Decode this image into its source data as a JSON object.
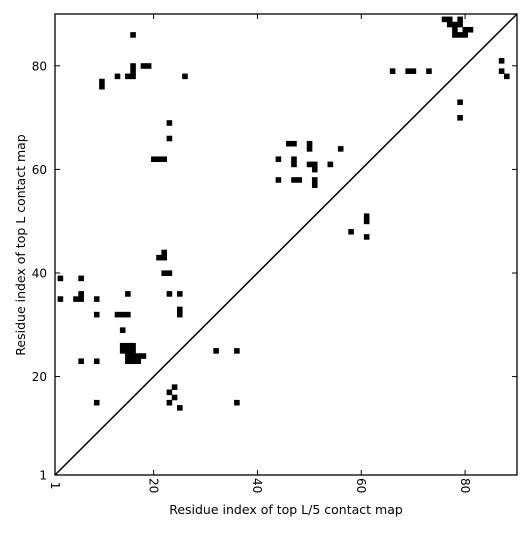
{
  "chart_data": {
    "type": "heatmap",
    "xlabel": "Residue index of top L/5 contact map",
    "ylabel": "Residue index of top L contact map",
    "x_ticks": [
      1,
      20,
      40,
      60,
      80
    ],
    "y_ticks": [
      1,
      20,
      40,
      60,
      80
    ],
    "x_tick_labels": [
      "1",
      "20",
      "40",
      "60",
      "80"
    ],
    "y_tick_labels": [
      "1",
      "20",
      "40",
      "60",
      "80"
    ],
    "xlim": [
      1,
      90
    ],
    "ylim": [
      1,
      90
    ],
    "diagonal": true,
    "grid": false,
    "colors": {
      "contact": "#000000",
      "background": "#ffffff",
      "axis": "#000000"
    },
    "contacts": [
      [
        16,
        86
      ],
      [
        10,
        77
      ],
      [
        10,
        76
      ],
      [
        13,
        78
      ],
      [
        15,
        78
      ],
      [
        16,
        78
      ],
      [
        16,
        79
      ],
      [
        16,
        80
      ],
      [
        18,
        80
      ],
      [
        19,
        80
      ],
      [
        26,
        78
      ],
      [
        23,
        69
      ],
      [
        23,
        66
      ],
      [
        20,
        62
      ],
      [
        21,
        62
      ],
      [
        22,
        62
      ],
      [
        21,
        43
      ],
      [
        22,
        43
      ],
      [
        22,
        44
      ],
      [
        22,
        40
      ],
      [
        23,
        40
      ],
      [
        23,
        36
      ],
      [
        25,
        36
      ],
      [
        25,
        33
      ],
      [
        25,
        32
      ],
      [
        2,
        39
      ],
      [
        6,
        39
      ],
      [
        2,
        35
      ],
      [
        5,
        35
      ],
      [
        6,
        35
      ],
      [
        6,
        36
      ],
      [
        9,
        35
      ],
      [
        9,
        32
      ],
      [
        13,
        32
      ],
      [
        14,
        32
      ],
      [
        15,
        32
      ],
      [
        15,
        36
      ],
      [
        14,
        29
      ],
      [
        14,
        26
      ],
      [
        15,
        26
      ],
      [
        16,
        26
      ],
      [
        14,
        25
      ],
      [
        15,
        25
      ],
      [
        16,
        25
      ],
      [
        15,
        24
      ],
      [
        16,
        24
      ],
      [
        17,
        24
      ],
      [
        18,
        24
      ],
      [
        15,
        23
      ],
      [
        16,
        23
      ],
      [
        17,
        23
      ],
      [
        6,
        23
      ],
      [
        9,
        23
      ],
      [
        9,
        15
      ],
      [
        24,
        18
      ],
      [
        23,
        17
      ],
      [
        24,
        16
      ],
      [
        23,
        15
      ],
      [
        25,
        14
      ],
      [
        32,
        25
      ],
      [
        36,
        25
      ],
      [
        36,
        15
      ],
      [
        44,
        62
      ],
      [
        44,
        58
      ],
      [
        46,
        65
      ],
      [
        47,
        65
      ],
      [
        47,
        62
      ],
      [
        47,
        61
      ],
      [
        47,
        58
      ],
      [
        48,
        58
      ],
      [
        50,
        65
      ],
      [
        50,
        64
      ],
      [
        50,
        61
      ],
      [
        51,
        61
      ],
      [
        51,
        60
      ],
      [
        51,
        58
      ],
      [
        51,
        57
      ],
      [
        54,
        61
      ],
      [
        56,
        64
      ],
      [
        58,
        48
      ],
      [
        61,
        51
      ],
      [
        61,
        50
      ],
      [
        61,
        47
      ],
      [
        66,
        79
      ],
      [
        69,
        79
      ],
      [
        70,
        79
      ],
      [
        73,
        79
      ],
      [
        76,
        89
      ],
      [
        77,
        89
      ],
      [
        77,
        88
      ],
      [
        78,
        88
      ],
      [
        79,
        88
      ],
      [
        79,
        89
      ],
      [
        78,
        87
      ],
      [
        78,
        86
      ],
      [
        79,
        86
      ],
      [
        80,
        86
      ],
      [
        80,
        87
      ],
      [
        81,
        87
      ],
      [
        79,
        73
      ],
      [
        79,
        70
      ],
      [
        87,
        81
      ],
      [
        87,
        79
      ],
      [
        88,
        78
      ]
    ]
  }
}
